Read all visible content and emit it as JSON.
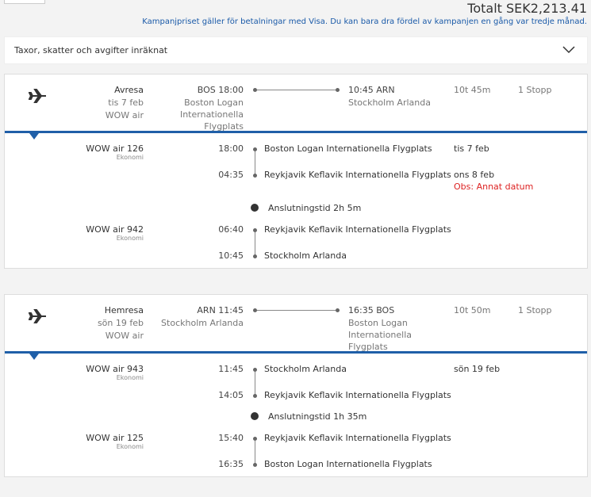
{
  "header": {
    "total": "Totalt SEK2,213.41",
    "notice": "Kampanjpriset gäller för betalningar med Visa. Du kan bara dra fördel av kampanjen en gång var tredje månad."
  },
  "taxes": "Taxor, skatter och avgifter inräknat",
  "trips": [
    {
      "label": "Avresa",
      "date": "tis 7 feb",
      "airline": "WOW air",
      "dep": "BOS 18:00",
      "dep_airport": "Boston Logan Internationella Flygplats",
      "arr": "10:45 ARN",
      "arr_airport": "Stockholm Arlanda",
      "duration": "10t 45m",
      "stops": "1 Stopp",
      "legs": [
        {
          "flight": "WOW air 126",
          "class": "Ekonomi",
          "dep_time": "18:00",
          "dep_airport": "Boston Logan Internationella Flygplats",
          "dep_date": "tis 7 feb",
          "arr_time": "04:35",
          "arr_airport": "Reykjavik Keflavik Internationella Flygplats",
          "arr_date": "ons 8 feb",
          "arr_note": "Obs: Annat datum"
        },
        {
          "flight": "WOW air 942",
          "class": "Ekonomi",
          "dep_time": "06:40",
          "dep_airport": "Reykjavik Keflavik Internationella Flygplats",
          "arr_time": "10:45",
          "arr_airport": "Stockholm Arlanda"
        }
      ],
      "connection": "Anslutningstid 2h 5m"
    },
    {
      "label": "Hemresa",
      "date": "sön 19 feb",
      "airline": "WOW air",
      "dep": "ARN 11:45",
      "dep_airport": "Stockholm Arlanda",
      "arr": "16:35 BOS",
      "arr_airport": "Boston Logan Internationella Flygplats",
      "duration": "10t 50m",
      "stops": "1 Stopp",
      "legs": [
        {
          "flight": "WOW air 943",
          "class": "Ekonomi",
          "dep_time": "11:45",
          "dep_airport": "Stockholm Arlanda",
          "dep_date": "sön 19 feb",
          "arr_time": "14:05",
          "arr_airport": "Reykjavik Keflavik Internationella Flygplats"
        },
        {
          "flight": "WOW air 125",
          "class": "Ekonomi",
          "dep_time": "15:40",
          "dep_airport": "Reykjavik Keflavik Internationella Flygplats",
          "arr_time": "16:35",
          "arr_airport": "Boston Logan Internationella Flygplats"
        }
      ],
      "connection": "Anslutningstid 1h 35m"
    }
  ]
}
